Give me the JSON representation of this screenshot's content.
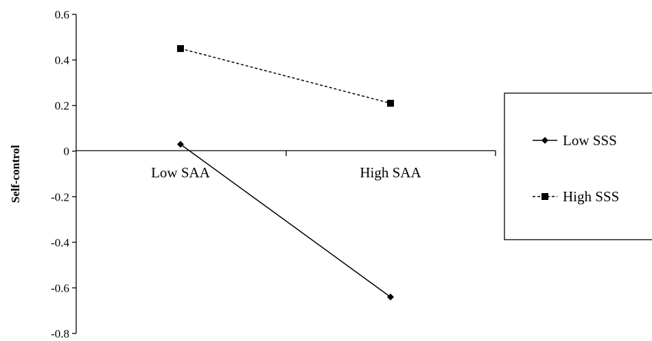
{
  "chart_data": {
    "type": "line",
    "categories": [
      "Low SAA",
      "High SAA"
    ],
    "ylabel": "Self-control",
    "xlabel": "",
    "ylim": [
      -0.8,
      0.6
    ],
    "yticks": [
      0.6,
      0.4,
      0.2,
      0,
      -0.2,
      -0.4,
      -0.6,
      -0.8
    ],
    "ytick_labels": [
      "0.6",
      "0.4",
      "0.2",
      "0",
      "-0.2",
      "-0.4",
      "-0.6",
      "-0.8"
    ],
    "grid": false,
    "legend_position": "right",
    "series": [
      {
        "name": "Low SSS",
        "values": [
          0.03,
          -0.64
        ],
        "line_style": "solid",
        "marker": "diamond",
        "color": "#000000"
      },
      {
        "name": "High SSS",
        "values": [
          0.45,
          0.21
        ],
        "line_style": "dashed",
        "marker": "square",
        "color": "#000000"
      }
    ]
  }
}
